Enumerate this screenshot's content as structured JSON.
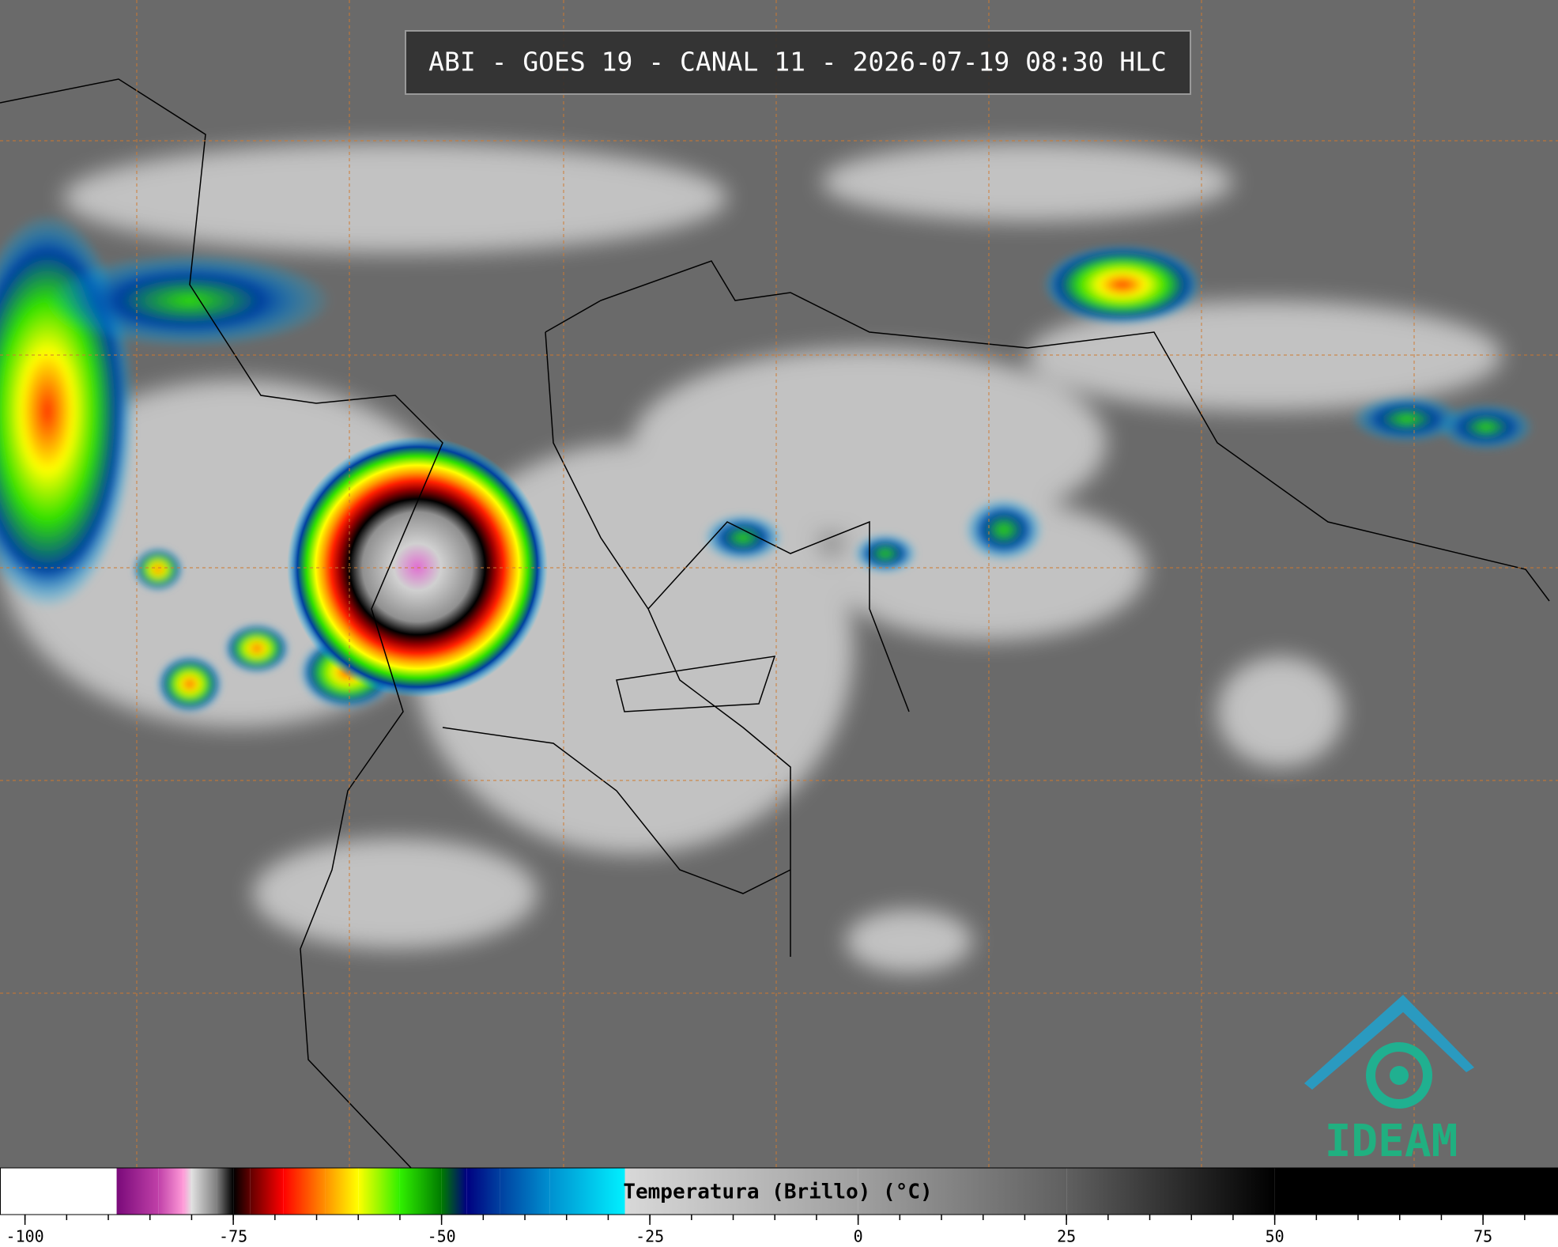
{
  "title": "ABI - GOES 19 - CANAL 11 - 2026-07-19 08:30 HLC",
  "logo": "IDEAM",
  "colorbar": {
    "label": "Temperatura (Brillo) (°C)",
    "xlim": [
      -103,
      84
    ],
    "xticks": [
      -100,
      -75,
      -50,
      -25,
      0,
      25,
      50,
      75
    ],
    "xminor_step": 5,
    "colormap": [
      {
        "value": -103,
        "color": "#ffffff"
      },
      {
        "value": -89,
        "color": "#ffffff"
      },
      {
        "value": -89,
        "color": "#7a0a7a"
      },
      {
        "value": -84,
        "color": "#c040a8"
      },
      {
        "value": -81,
        "color": "#ff9ad8"
      },
      {
        "value": -80,
        "color": "#e0e0e0"
      },
      {
        "value": -77,
        "color": "#808080"
      },
      {
        "value": -75,
        "color": "#000000"
      },
      {
        "value": -73,
        "color": "#600000"
      },
      {
        "value": -69,
        "color": "#ff0000"
      },
      {
        "value": -64,
        "color": "#ff9000"
      },
      {
        "value": -60,
        "color": "#ffff00"
      },
      {
        "value": -55,
        "color": "#30f000"
      },
      {
        "value": -50,
        "color": "#007a00"
      },
      {
        "value": -47,
        "color": "#000080"
      },
      {
        "value": -43,
        "color": "#0040a0"
      },
      {
        "value": -37,
        "color": "#0090d0"
      },
      {
        "value": -28,
        "color": "#00f0ff"
      },
      {
        "value": -28,
        "color": "#d8d8d8"
      },
      {
        "value": 0,
        "color": "#a0a0a0"
      },
      {
        "value": 25,
        "color": "#606060"
      },
      {
        "value": 50,
        "color": "#000000"
      },
      {
        "value": 84,
        "color": "#000000"
      }
    ]
  }
}
